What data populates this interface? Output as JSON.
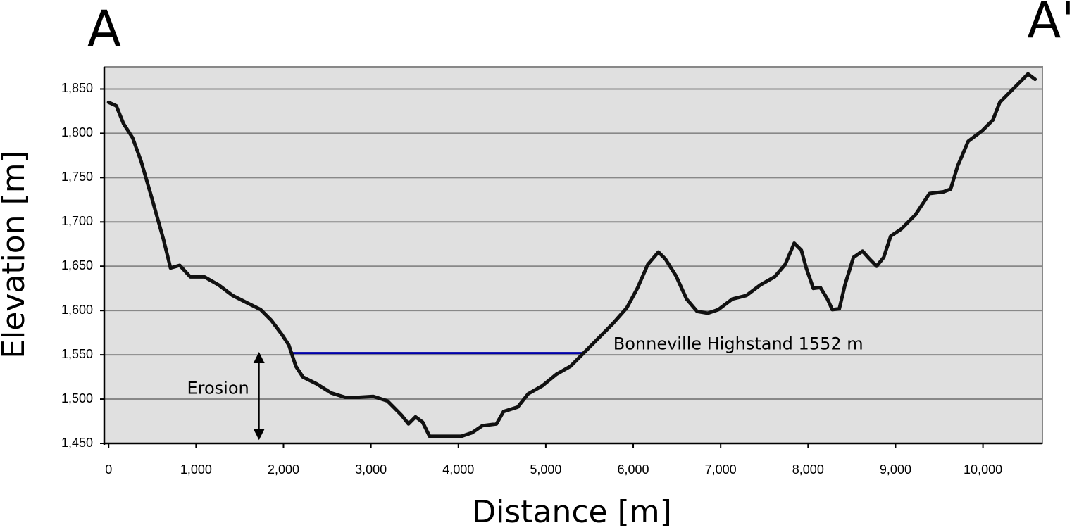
{
  "chart_data": {
    "type": "line",
    "section_labels": [
      "A",
      "A'"
    ],
    "xlabel": "Distance [m]",
    "ylabel": "Elevation [m]",
    "color": "#111111",
    "x": [
      0,
      88,
      170,
      274,
      370,
      491,
      628,
      708,
      813,
      934,
      1095,
      1256,
      1417,
      1578,
      1739,
      1860,
      1981,
      2061,
      2142,
      2222,
      2383,
      2544,
      2705,
      2866,
      3027,
      3188,
      3269,
      3349,
      3430,
      3510,
      3591,
      3671,
      3833,
      4034,
      4155,
      4275,
      4436,
      4517,
      4678,
      4799,
      4960,
      5121,
      5282,
      5443,
      5604,
      5765,
      5926,
      6047,
      6167,
      6288,
      6369,
      6490,
      6610,
      6731,
      6852,
      6973,
      7134,
      7295,
      7456,
      7617,
      7738,
      7842,
      7923,
      7979,
      8060,
      8140,
      8221,
      8277,
      8357,
      8422,
      8519,
      8623,
      8704,
      8784,
      8865,
      8945,
      9066,
      9227,
      9388,
      9549,
      9630,
      9710,
      9831,
      9992,
      10113,
      10193,
      10354,
      10515,
      10596
    ],
    "values": [
      1835,
      1831,
      1811,
      1795,
      1769,
      1728,
      1680,
      1648,
      1651,
      1638,
      1638,
      1629,
      1617,
      1609,
      1601,
      1589,
      1573,
      1561,
      1537,
      1525,
      1517,
      1507,
      1502,
      1502,
      1503,
      1498,
      1490,
      1482,
      1472,
      1480,
      1474,
      1458,
      1458,
      1458,
      1462,
      1470,
      1472,
      1486,
      1491,
      1506,
      1515,
      1528,
      1537,
      1553,
      1569,
      1585,
      1603,
      1625,
      1652,
      1666,
      1658,
      1639,
      1613,
      1599,
      1597,
      1601,
      1613,
      1617,
      1629,
      1638,
      1652,
      1676,
      1668,
      1648,
      1625,
      1626,
      1613,
      1601,
      1602,
      1629,
      1660,
      1667,
      1658,
      1650,
      1660,
      1684,
      1692,
      1708,
      1732,
      1734,
      1737,
      1763,
      1791,
      1803,
      1815,
      1835,
      1851,
      1867,
      1861
    ],
    "highstand": {
      "text": "Bonneville Highstand 1552 m",
      "x": [
        2100,
        5450
      ],
      "y": 1552,
      "color": "#0000aa"
    },
    "erosion": {
      "text": "Erosion",
      "x": 1720,
      "y": [
        1552,
        1455
      ]
    },
    "xlim": [
      -50,
      10680
    ],
    "ylim": [
      1450,
      1875
    ],
    "xticks": [
      0,
      {
        "value": 1000,
        "label": "1,000"
      },
      {
        "value": 2000,
        "label": "2,000"
      },
      {
        "value": 3000,
        "label": "3,000"
      },
      {
        "value": 4000,
        "label": "4,000"
      },
      {
        "value": 5000,
        "label": "5,000"
      },
      {
        "value": 6000,
        "label": "6,000"
      },
      {
        "value": 7000,
        "label": "7,000"
      },
      {
        "value": 8000,
        "label": "8,000"
      },
      {
        "value": 9000,
        "label": "9,000"
      },
      {
        "value": 10000,
        "label": "10,000"
      }
    ],
    "yticks": [
      {
        "value": 1450,
        "label": "1,450"
      },
      {
        "value": 1500,
        "label": "1,500"
      },
      {
        "value": 1550,
        "label": "1,550"
      },
      {
        "value": 1600,
        "label": "1,600"
      },
      {
        "value": 1650,
        "label": "1,650"
      },
      {
        "value": 1700,
        "label": "1,700"
      },
      {
        "value": 1750,
        "label": "1,750"
      },
      {
        "value": 1800,
        "label": "1,800"
      },
      {
        "value": 1850,
        "label": "1,850"
      }
    ],
    "grid": true
  }
}
